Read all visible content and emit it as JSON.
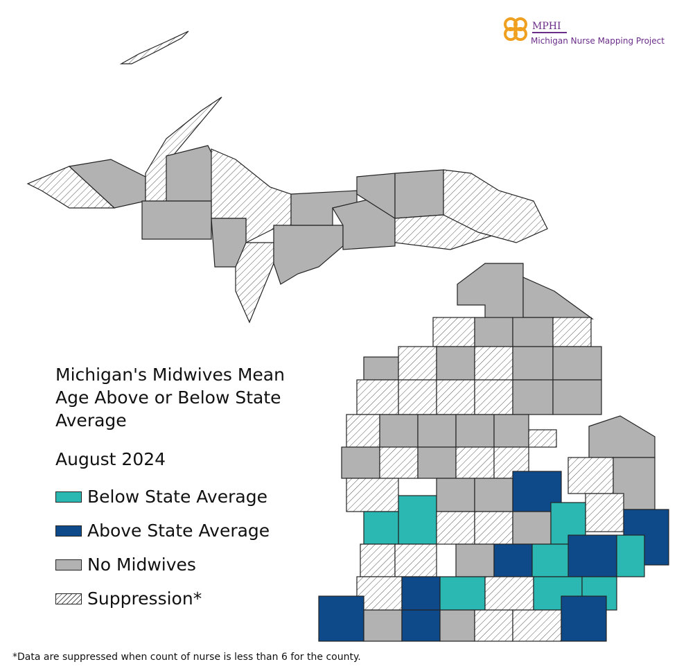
{
  "logo": {
    "name": "MPHI",
    "subtitle": "Michigan Nurse Mapping Project"
  },
  "title": "Michigan's Midwives Mean Age Above or Below State Average",
  "subtitle": "August 2024",
  "legend": {
    "items": [
      {
        "label": "Below State Average",
        "color": "#2bb8b2"
      },
      {
        "label": "Above State Average",
        "color": "#0e4a8a"
      },
      {
        "label": "No Midwives",
        "color": "#b2b2b2"
      },
      {
        "label": "Suppression*",
        "color": "#ffffff",
        "hatch": true
      }
    ]
  },
  "footnote": "*Data are suppressed when count of nurse is less than 6 for the county."
}
